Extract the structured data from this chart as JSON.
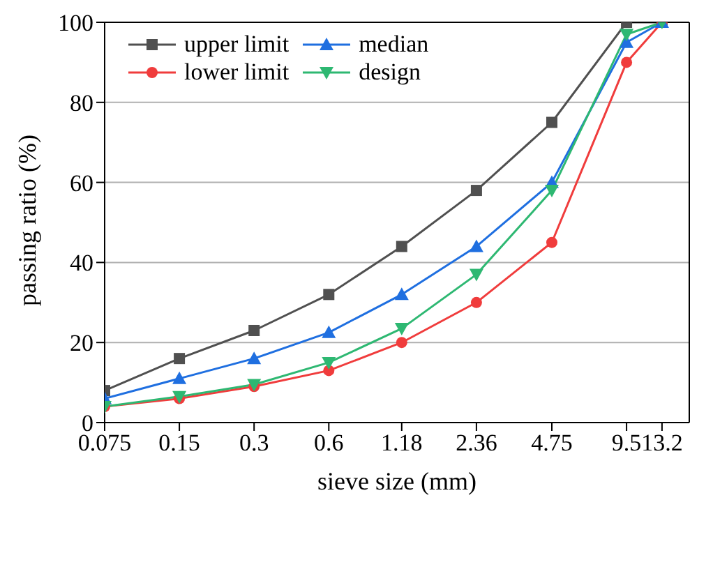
{
  "chart_data": {
    "type": "line",
    "xlabel": "sieve size (mm)",
    "ylabel": "passing ratio (%)",
    "x": [
      0.075,
      0.15,
      0.3,
      0.6,
      1.18,
      2.36,
      4.75,
      9.5,
      13.2
    ],
    "log": "x",
    "xlim": [
      0.075,
      17
    ],
    "xticks": [
      0.075,
      0.15,
      0.3,
      0.6,
      1.18,
      2.36,
      4.75,
      9.5,
      13.2
    ],
    "ylim": [
      0,
      100
    ],
    "yticks": [
      0,
      20,
      40,
      60,
      80,
      100
    ],
    "grid": "y",
    "legend": "top left",
    "series": [
      {
        "name": "upper limit",
        "color": "#505050",
        "marker": "square",
        "values": [
          8,
          16,
          23,
          32,
          44,
          58,
          75,
          100,
          100
        ]
      },
      {
        "name": "lower limit",
        "color": "#f03c3c",
        "marker": "circle",
        "values": [
          4,
          6,
          9,
          13,
          20,
          30,
          45,
          90,
          100
        ]
      },
      {
        "name": "median",
        "color": "#1f6fe0",
        "marker": "triangle",
        "values": [
          6,
          11,
          16,
          22.5,
          32,
          44,
          60,
          95,
          100
        ]
      },
      {
        "name": "design",
        "color": "#2eb872",
        "marker": "triangle-down",
        "values": [
          4,
          6.5,
          9.5,
          15,
          23.5,
          37,
          58,
          97,
          100
        ]
      }
    ]
  }
}
